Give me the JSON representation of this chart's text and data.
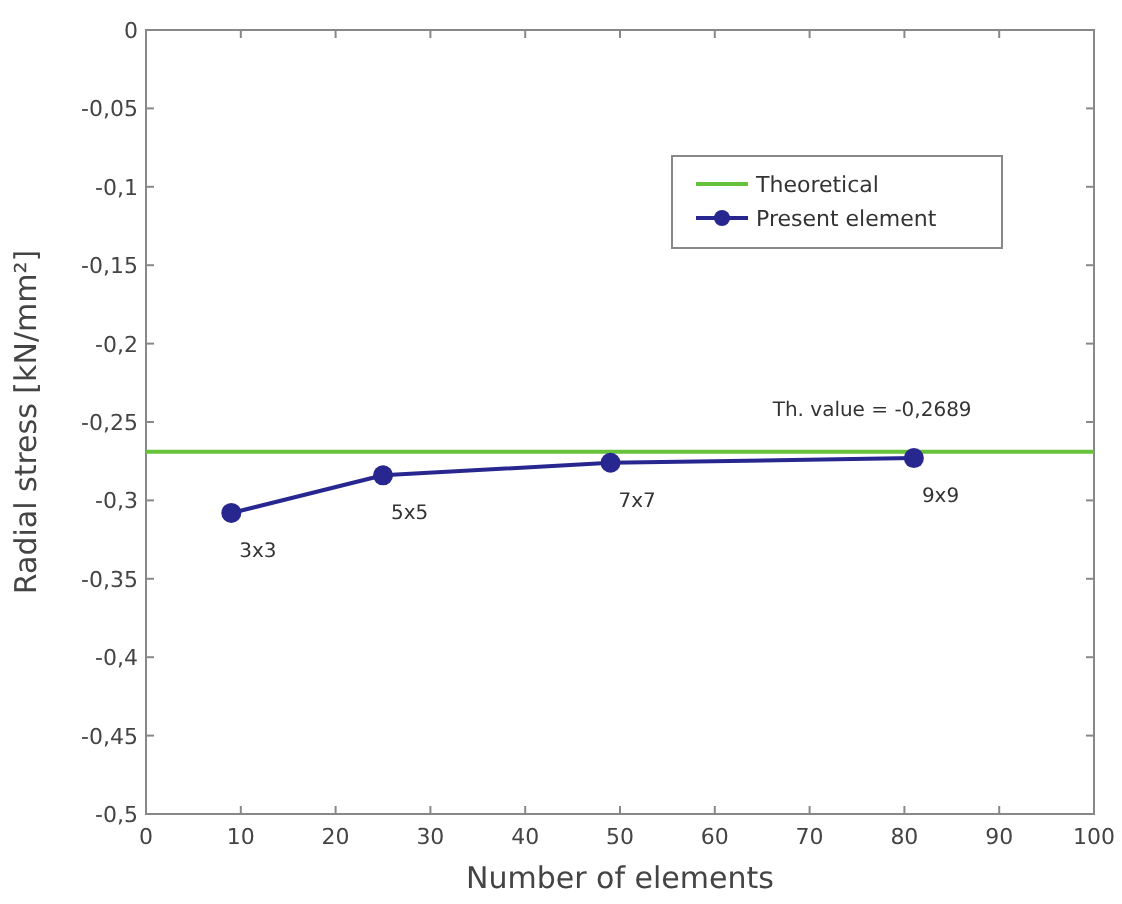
{
  "chart_data": {
    "type": "line",
    "xlabel": "Number of elements",
    "ylabel": "Radial stress [kN/mm²]",
    "xlim": [
      0,
      100
    ],
    "xticks": [
      0,
      10,
      20,
      30,
      40,
      50,
      60,
      70,
      80,
      90,
      100
    ],
    "ylim": [
      -0.5,
      0
    ],
    "yticks": [
      {
        "value": -0.5,
        "label": "-0,5"
      },
      {
        "value": -0.45,
        "label": "-0,45"
      },
      {
        "value": -0.4,
        "label": "-0,4"
      },
      {
        "value": -0.35,
        "label": "-0,35"
      },
      {
        "value": -0.3,
        "label": "-0,3"
      },
      {
        "value": -0.25,
        "label": "-0,25"
      },
      {
        "value": -0.2,
        "label": "-0,2"
      },
      {
        "value": -0.15,
        "label": "-0,15"
      },
      {
        "value": -0.1,
        "label": "-0,1"
      },
      {
        "value": -0.05,
        "label": "-0,05"
      },
      {
        "value": 0,
        "label": "0"
      }
    ],
    "series": [
      {
        "name": "Theoretical",
        "color": "#66c23a",
        "x": [
          0,
          100
        ],
        "values": [
          -0.2689,
          -0.2689
        ],
        "marker": "none"
      },
      {
        "name": "Present element",
        "color": "#27278f",
        "x": [
          9,
          25,
          49,
          81
        ],
        "values": [
          -0.308,
          -0.284,
          -0.276,
          -0.273
        ],
        "marker": "circle"
      }
    ],
    "annotations": [
      {
        "text": "Th. value = -0,2689",
        "x": 76.6,
        "y": -0.2689
      },
      {
        "text": "3x3",
        "x": 9,
        "y": -0.308
      },
      {
        "text": "5x5",
        "x": 25,
        "y": -0.284
      },
      {
        "text": "7x7",
        "x": 49,
        "y": -0.276
      },
      {
        "text": "9x9",
        "x": 81,
        "y": -0.273
      }
    ],
    "legend": "top right",
    "grid": false,
    "line_style": "solid"
  }
}
